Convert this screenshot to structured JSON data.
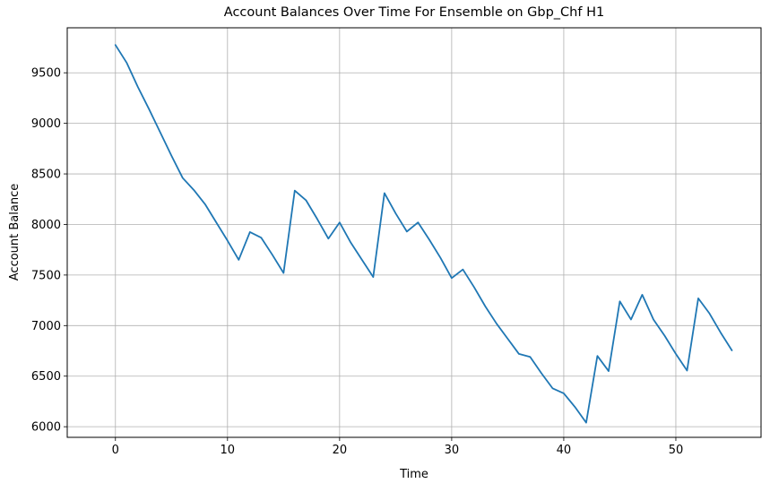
{
  "chart_data": {
    "type": "line",
    "title": "Account Balances Over Time For Ensemble on Gbp_Chf H1",
    "xlabel": "Time",
    "ylabel": "Account Balance",
    "xlim": [
      -4.3,
      57.6
    ],
    "ylim": [
      5895,
      9945
    ],
    "xticks": [
      0,
      10,
      20,
      30,
      40,
      50
    ],
    "yticks": [
      6000,
      6500,
      7000,
      7500,
      8000,
      8500,
      9000,
      9500
    ],
    "grid": true,
    "legend": "none",
    "series": [
      {
        "color": "#1f77b4",
        "x": [
          0,
          1,
          2,
          3,
          4,
          5,
          6,
          7,
          8,
          9,
          10,
          11,
          12,
          13,
          14,
          15,
          16,
          17,
          18,
          19,
          20,
          21,
          22,
          23,
          24,
          25,
          26,
          27,
          28,
          29,
          30,
          31,
          32,
          33,
          34,
          35,
          36,
          37,
          38,
          39,
          40,
          41,
          42,
          43,
          44,
          45,
          46,
          47,
          48,
          49,
          50,
          51,
          52,
          53,
          54,
          55
        ],
        "values": [
          9775,
          9600,
          9360,
          9140,
          8910,
          8680,
          8460,
          8340,
          8200,
          8020,
          7840,
          7650,
          7925,
          7870,
          7700,
          7520,
          8335,
          8240,
          8055,
          7860,
          8020,
          7820,
          7650,
          7480,
          8310,
          8110,
          7930,
          8020,
          7850,
          7670,
          7470,
          7555,
          7380,
          7190,
          7020,
          6870,
          6720,
          6690,
          6530,
          6380,
          6330,
          6195,
          6040,
          6700,
          6550,
          7240,
          7060,
          7305,
          7060,
          6900,
          6720,
          6555,
          7270,
          7120,
          6930,
          6755
        ]
      }
    ]
  }
}
